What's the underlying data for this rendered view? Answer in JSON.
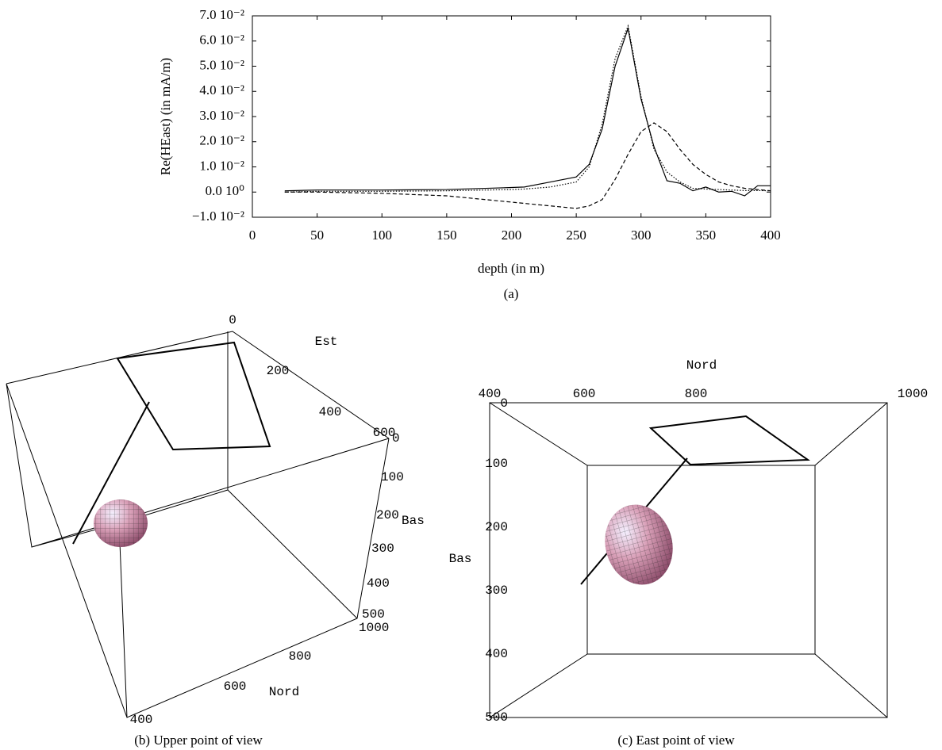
{
  "chart_data": {
    "type": "line",
    "x_label": "depth (in m)",
    "y_label": "Re(HEast) (in mA/m)",
    "caption": "(a)",
    "x": [
      25,
      50,
      100,
      150,
      200,
      210,
      230,
      250,
      260,
      270,
      280,
      290,
      300,
      310,
      320,
      330,
      340,
      350,
      360,
      370,
      380,
      390,
      400
    ],
    "series": [
      {
        "color": "#000000",
        "dash": "solid",
        "values": [
          0.0005,
          0.0008,
          0.0008,
          0.001,
          0.0018,
          0.002,
          0.004,
          0.006,
          0.011,
          0.025,
          0.05,
          0.065,
          0.037,
          0.018,
          0.0045,
          0.0035,
          0.0005,
          0.002,
          0,
          0.0003,
          -0.0015,
          0.0025,
          0.0025
        ]
      },
      {
        "color": "#000000",
        "dash": "dotted",
        "values": [
          0,
          0.0003,
          0.0003,
          0.0005,
          0.001,
          0.0012,
          0.002,
          0.004,
          0.01,
          0.027,
          0.053,
          0.066,
          0.038,
          0.017,
          0.008,
          0.004,
          0.0015,
          0.0012,
          0.001,
          0.0008,
          0.0006,
          0.0006,
          0.0005
        ]
      },
      {
        "color": "#000000",
        "dash": "dashed",
        "values": [
          0,
          0,
          -0.0005,
          -0.0015,
          -0.004,
          -0.0045,
          -0.0055,
          -0.0065,
          -0.0055,
          -0.003,
          0.005,
          0.015,
          0.024,
          0.0275,
          0.024,
          0.017,
          0.011,
          0.007,
          0.004,
          0.0025,
          0.0015,
          0.001,
          0.0005
        ]
      }
    ],
    "xlim": [
      0,
      400
    ],
    "xticks": [
      0,
      50,
      100,
      150,
      200,
      250,
      300,
      350,
      400
    ],
    "ylim": [
      -0.01,
      0.07
    ],
    "yticks": [
      {
        "value": -0.01,
        "label": "−1.0 10⁻²"
      },
      {
        "value": 0,
        "label": "0.0 10⁰"
      },
      {
        "value": 0.01,
        "label": "1.0 10⁻²"
      },
      {
        "value": 0.02,
        "label": "2.0 10⁻²"
      },
      {
        "value": 0.03,
        "label": "3.0 10⁻²"
      },
      {
        "value": 0.04,
        "label": "4.0 10⁻²"
      },
      {
        "value": 0.05,
        "label": "5.0 10⁻²"
      },
      {
        "value": 0.06,
        "label": "6.0 10⁻²"
      },
      {
        "value": 0.07,
        "label": "7.0 10⁻²"
      }
    ],
    "grid": false
  },
  "views": [
    {
      "caption": "(b) Upper point of view",
      "est": {
        "label": "Est",
        "ticks": [
          0,
          200,
          400,
          600
        ]
      },
      "bas": {
        "label": "Bas",
        "ticks": [
          0,
          100,
          200,
          300,
          400,
          500
        ]
      },
      "nord": {
        "label": "Nord",
        "ticks": [
          1000,
          800,
          600,
          400
        ]
      }
    },
    {
      "caption": "(c) East point of view",
      "nord": {
        "label": "Nord",
        "ticks": [
          400,
          600,
          800,
          1000
        ]
      },
      "bas": {
        "label": "Bas",
        "ticks": [
          0,
          100,
          200,
          300,
          400,
          500
        ]
      }
    }
  ]
}
